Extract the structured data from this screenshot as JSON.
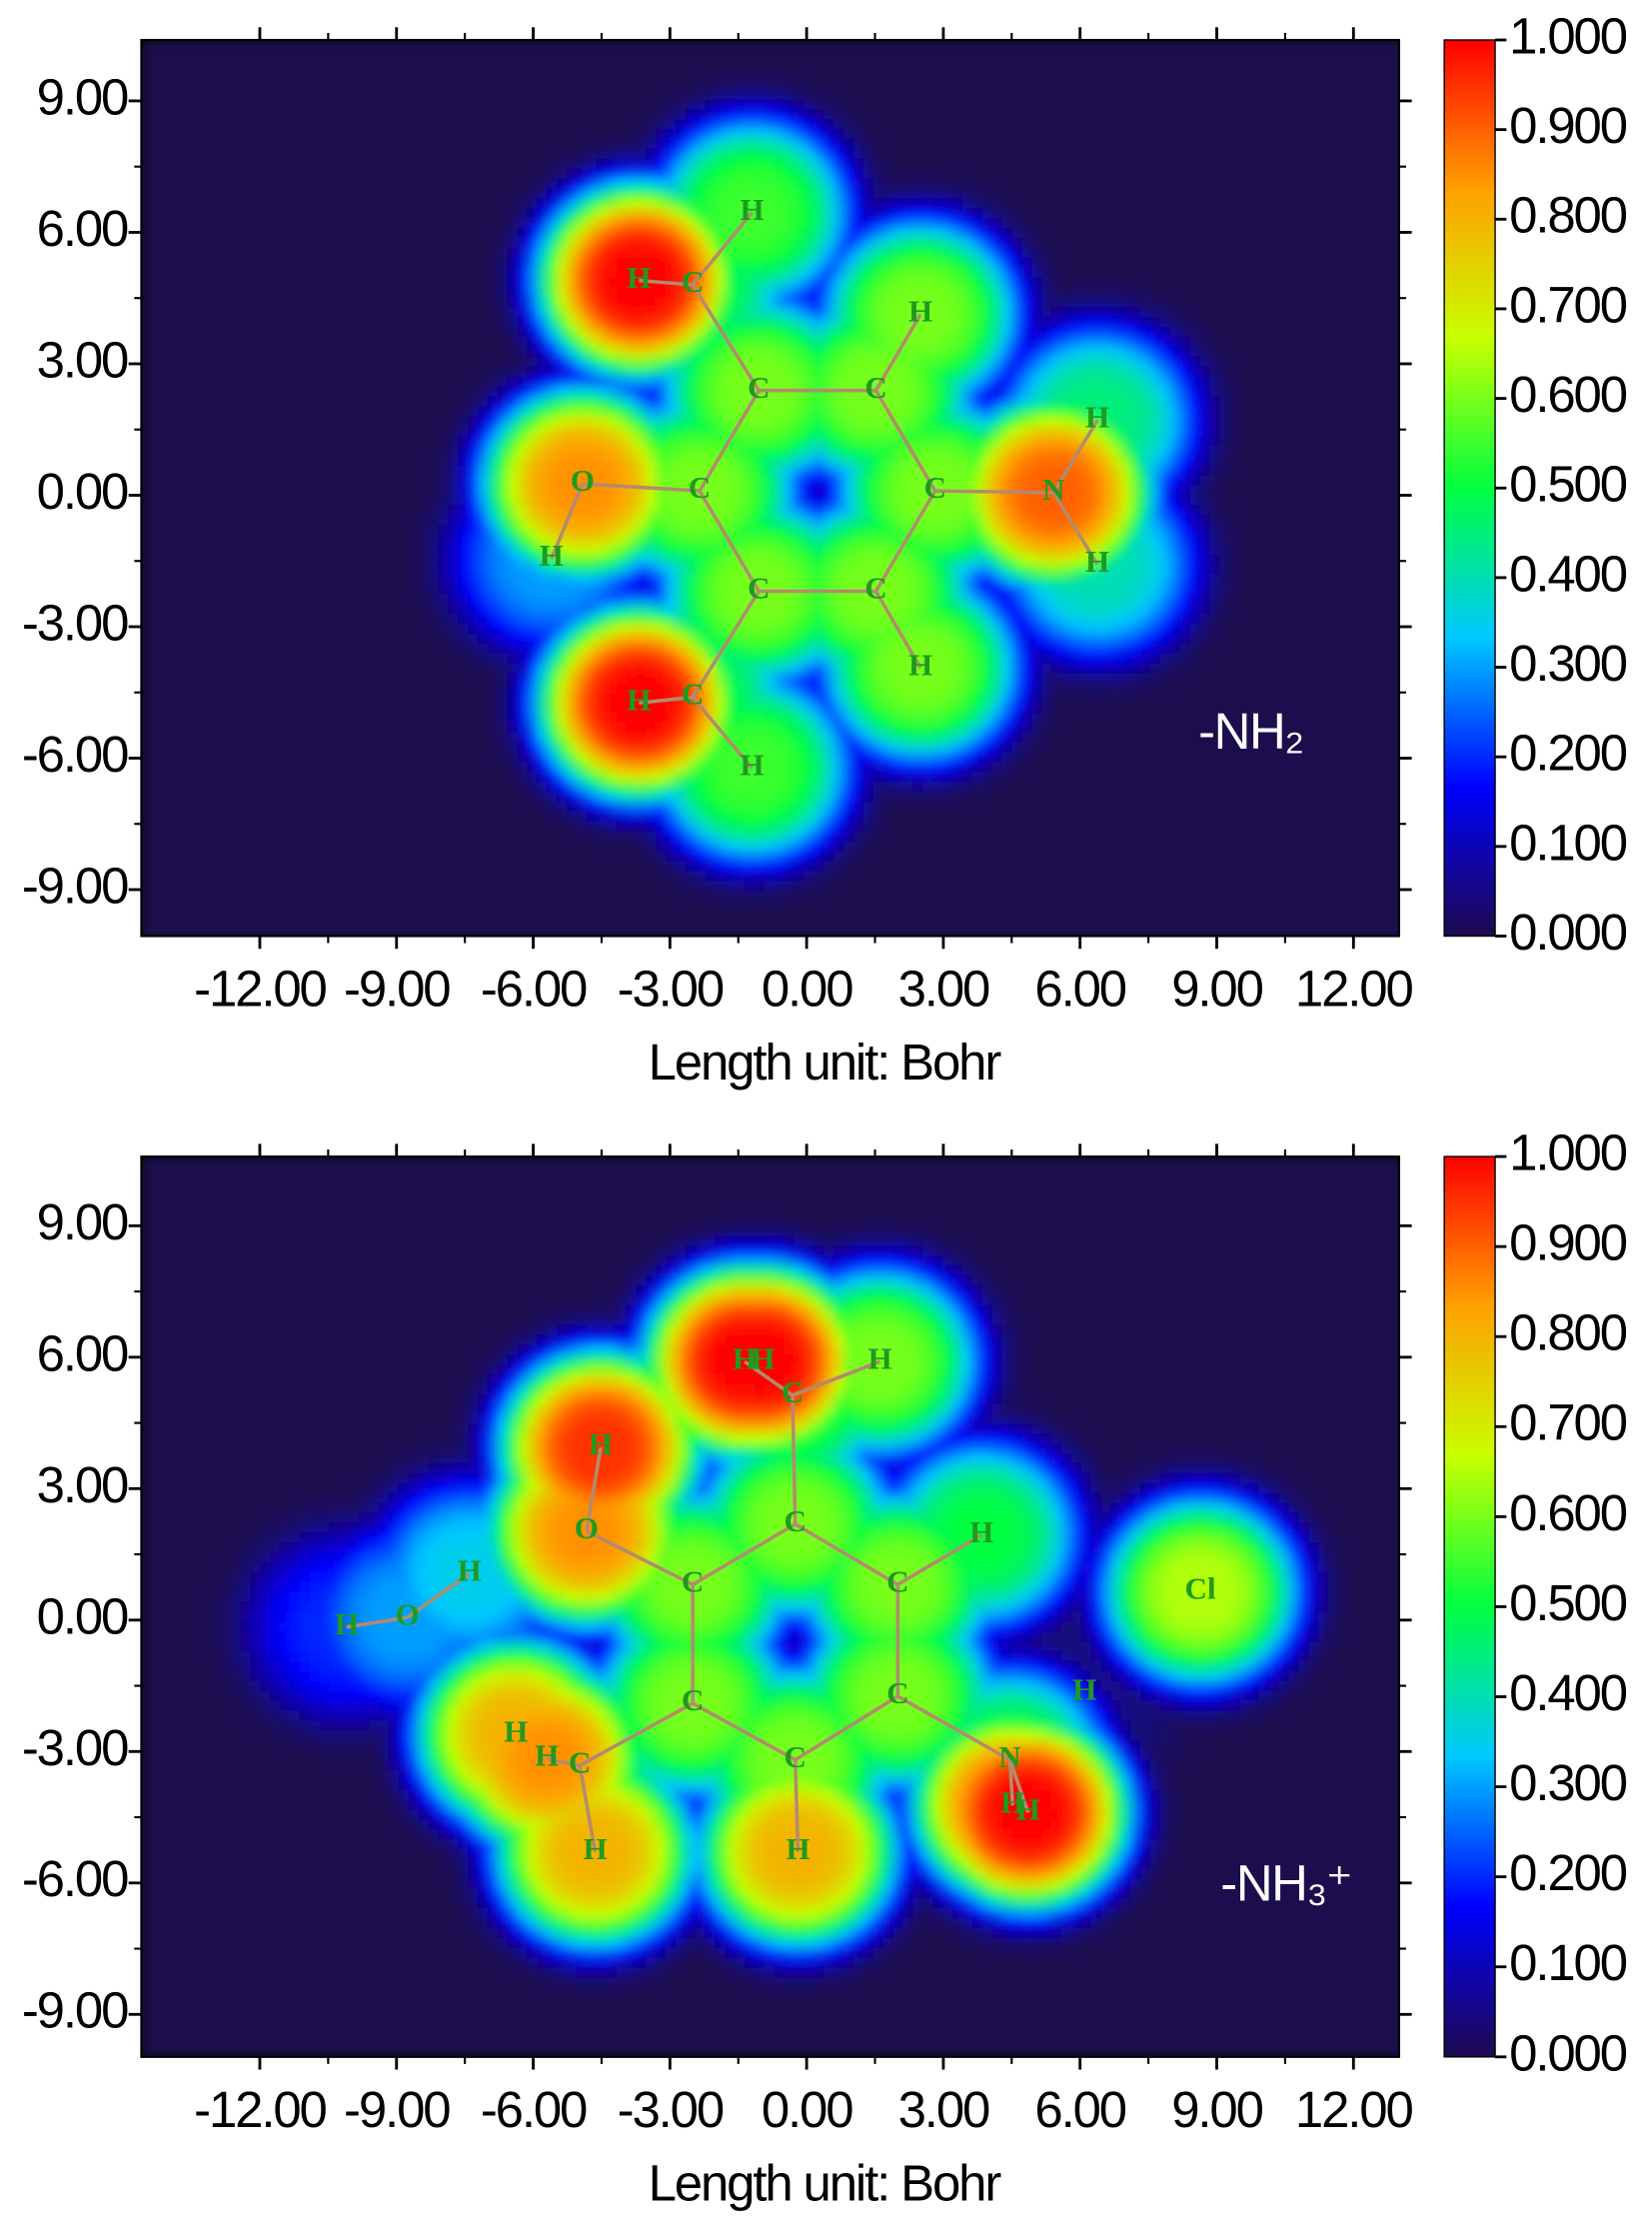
{
  "chart_data": [
    {
      "type": "heatmap",
      "xlabel": "Length unit: Bohr",
      "annotation": "-NH₂",
      "xlim": [
        -14.6,
        13.0
      ],
      "ylim": [
        -10.06,
        10.39
      ],
      "xticks": [
        {
          "value": -12,
          "label": "-12.00"
        },
        {
          "value": -9,
          "label": "-9.00"
        },
        {
          "value": -6,
          "label": "-6.00"
        },
        {
          "value": -3,
          "label": "-3.00"
        },
        {
          "value": 0,
          "label": "0.00"
        },
        {
          "value": 3,
          "label": "3.00"
        },
        {
          "value": 6,
          "label": "6.00"
        },
        {
          "value": 9,
          "label": "9.00"
        },
        {
          "value": 12,
          "label": "12.00"
        }
      ],
      "yticks": [
        {
          "value": -9,
          "label": "-9.00"
        },
        {
          "value": -6,
          "label": "-6.00"
        },
        {
          "value": -3,
          "label": "-3.00"
        },
        {
          "value": 0,
          "label": "0.00"
        },
        {
          "value": 3,
          "label": "3.00"
        },
        {
          "value": 6,
          "label": "6.00"
        },
        {
          "value": 9,
          "label": "9.00"
        }
      ],
      "clim": [
        0,
        1
      ],
      "cticks": [
        {
          "value": 0,
          "label": "0.000"
        },
        {
          "value": 0.1,
          "label": "0.100"
        },
        {
          "value": 0.2,
          "label": "0.200"
        },
        {
          "value": 0.3,
          "label": "0.300"
        },
        {
          "value": 0.4,
          "label": "0.400"
        },
        {
          "value": 0.5,
          "label": "0.500"
        },
        {
          "value": 0.6,
          "label": "0.600"
        },
        {
          "value": 0.7,
          "label": "0.700"
        },
        {
          "value": 0.8,
          "label": "0.800"
        },
        {
          "value": 0.9,
          "label": "0.900"
        },
        {
          "value": 1,
          "label": "1.000"
        }
      ],
      "colormap": [
        "#1e0a4e",
        "#0000ff",
        "#00c8ff",
        "#00ff40",
        "#c8ff00",
        "#ffa000",
        "#ff0000"
      ],
      "atoms": {
        "labels": [
          "C",
          "C",
          "C",
          "C",
          "C",
          "C",
          "O",
          "H",
          "C",
          "H",
          "H",
          "H",
          "N",
          "H",
          "H",
          "H",
          "C",
          "H",
          "H"
        ],
        "x": [
          -1.05,
          1.52,
          -2.35,
          2.82,
          -1.05,
          1.52,
          -4.92,
          -5.6,
          -2.5,
          -3.68,
          -1.2,
          2.5,
          5.42,
          6.38,
          6.38,
          2.5,
          -2.5,
          -3.68,
          -1.2
        ],
        "y": [
          2.39,
          2.39,
          0.1,
          0.1,
          -2.19,
          -2.19,
          0.26,
          -1.45,
          4.8,
          4.9,
          6.45,
          4.13,
          0.06,
          1.71,
          -1.58,
          -3.94,
          -4.61,
          -4.74,
          -6.23
        ],
        "values": [
          0.6,
          0.6,
          0.6,
          0.6,
          0.6,
          0.6,
          0.85,
          0.3,
          0.5,
          1.0,
          0.55,
          0.6,
          0.9,
          0.45,
          0.4,
          0.6,
          0.5,
          1.0,
          0.55
        ]
      },
      "bonds": [
        [
          0,
          1
        ],
        [
          1,
          3
        ],
        [
          3,
          5
        ],
        [
          5,
          4
        ],
        [
          4,
          2
        ],
        [
          2,
          0
        ],
        [
          2,
          6
        ],
        [
          6,
          7
        ],
        [
          0,
          8
        ],
        [
          8,
          9
        ],
        [
          8,
          10
        ],
        [
          1,
          11
        ],
        [
          3,
          12
        ],
        [
          12,
          13
        ],
        [
          12,
          14
        ],
        [
          5,
          15
        ],
        [
          4,
          16
        ],
        [
          16,
          17
        ],
        [
          16,
          18
        ]
      ]
    },
    {
      "type": "heatmap",
      "xlabel": "Length unit: Bohr",
      "annotation": "-NH₃⁺",
      "xlim": [
        -14.6,
        13.0
      ],
      "ylim": [
        -9.97,
        10.58
      ],
      "xticks": [
        {
          "value": -12,
          "label": "-12.00"
        },
        {
          "value": -9,
          "label": "-9.00"
        },
        {
          "value": -6,
          "label": "-6.00"
        },
        {
          "value": -3,
          "label": "-3.00"
        },
        {
          "value": 0,
          "label": "0.00"
        },
        {
          "value": 3,
          "label": "3.00"
        },
        {
          "value": 6,
          "label": "6.00"
        },
        {
          "value": 9,
          "label": "9.00"
        },
        {
          "value": 12,
          "label": "12.00"
        }
      ],
      "yticks": [
        {
          "value": -9,
          "label": "-9.00"
        },
        {
          "value": -6,
          "label": "-6.00"
        },
        {
          "value": -3,
          "label": "-3.00"
        },
        {
          "value": 0,
          "label": "0.00"
        },
        {
          "value": 3,
          "label": "3.00"
        },
        {
          "value": 6,
          "label": "6.00"
        },
        {
          "value": 9,
          "label": "9.00"
        }
      ],
      "clim": [
        0,
        1
      ],
      "cticks": [
        {
          "value": 0,
          "label": "0.000"
        },
        {
          "value": 0.1,
          "label": "0.100"
        },
        {
          "value": 0.2,
          "label": "0.200"
        },
        {
          "value": 0.3,
          "label": "0.300"
        },
        {
          "value": 0.4,
          "label": "0.400"
        },
        {
          "value": 0.5,
          "label": "0.500"
        },
        {
          "value": 0.6,
          "label": "0.600"
        },
        {
          "value": 0.7,
          "label": "0.700"
        },
        {
          "value": 0.8,
          "label": "0.800"
        },
        {
          "value": 0.9,
          "label": "0.900"
        },
        {
          "value": 1,
          "label": "1.000"
        }
      ],
      "colormap": [
        "#1e0a4e",
        "#0000ff",
        "#00c8ff",
        "#00ff40",
        "#c8ff00",
        "#ffa000",
        "#ff0000"
      ],
      "atoms": {
        "labels": [
          "H",
          "H",
          "C",
          "H",
          "H",
          "O",
          "C",
          "H",
          "C",
          "C",
          "H",
          "O",
          "H",
          "C",
          "C",
          "C",
          "H",
          "Cl",
          "N",
          "H",
          "H",
          "H",
          "H",
          "C",
          "H",
          "H"
        ],
        "x": [
          -1.36,
          -0.96,
          -0.31,
          1.61,
          -4.52,
          -4.83,
          -0.25,
          3.84,
          -2.5,
          2.0,
          -7.4,
          -8.76,
          -10.09,
          -2.5,
          2.0,
          -0.25,
          6.1,
          8.64,
          4.46,
          4.52,
          4.86,
          -6.38,
          -5.7,
          -4.98,
          -4.64,
          -0.19
        ],
        "y": [
          5.9,
          5.9,
          5.13,
          5.9,
          3.94,
          2.03,
          2.19,
          1.94,
          0.81,
          0.81,
          1.06,
          0.06,
          -0.16,
          -1.9,
          -1.74,
          -3.19,
          -1.65,
          0.65,
          -3.19,
          -4.23,
          -4.39,
          -2.61,
          -3.16,
          -3.32,
          -5.29,
          -5.29
        ],
        "values": [
          1.0,
          1.0,
          0.55,
          0.6,
          0.95,
          0.85,
          0.6,
          0.5,
          0.6,
          0.6,
          0.35,
          0.3,
          0.2,
          0.6,
          0.6,
          0.6,
          0.05,
          0.65,
          0.5,
          0.9,
          1.0,
          0.8,
          0.85,
          0.5,
          0.8,
          0.8
        ]
      },
      "bonds": [
        [
          0,
          2
        ],
        [
          2,
          3
        ],
        [
          2,
          6
        ],
        [
          4,
          5
        ],
        [
          5,
          8
        ],
        [
          6,
          8
        ],
        [
          6,
          9
        ],
        [
          9,
          7
        ],
        [
          8,
          13
        ],
        [
          9,
          14
        ],
        [
          13,
          15
        ],
        [
          14,
          15
        ],
        [
          14,
          18
        ],
        [
          18,
          19
        ],
        [
          18,
          20
        ],
        [
          15,
          25
        ],
        [
          13,
          23
        ],
        [
          23,
          22
        ],
        [
          23,
          24
        ],
        [
          10,
          11
        ],
        [
          11,
          12
        ]
      ]
    }
  ]
}
